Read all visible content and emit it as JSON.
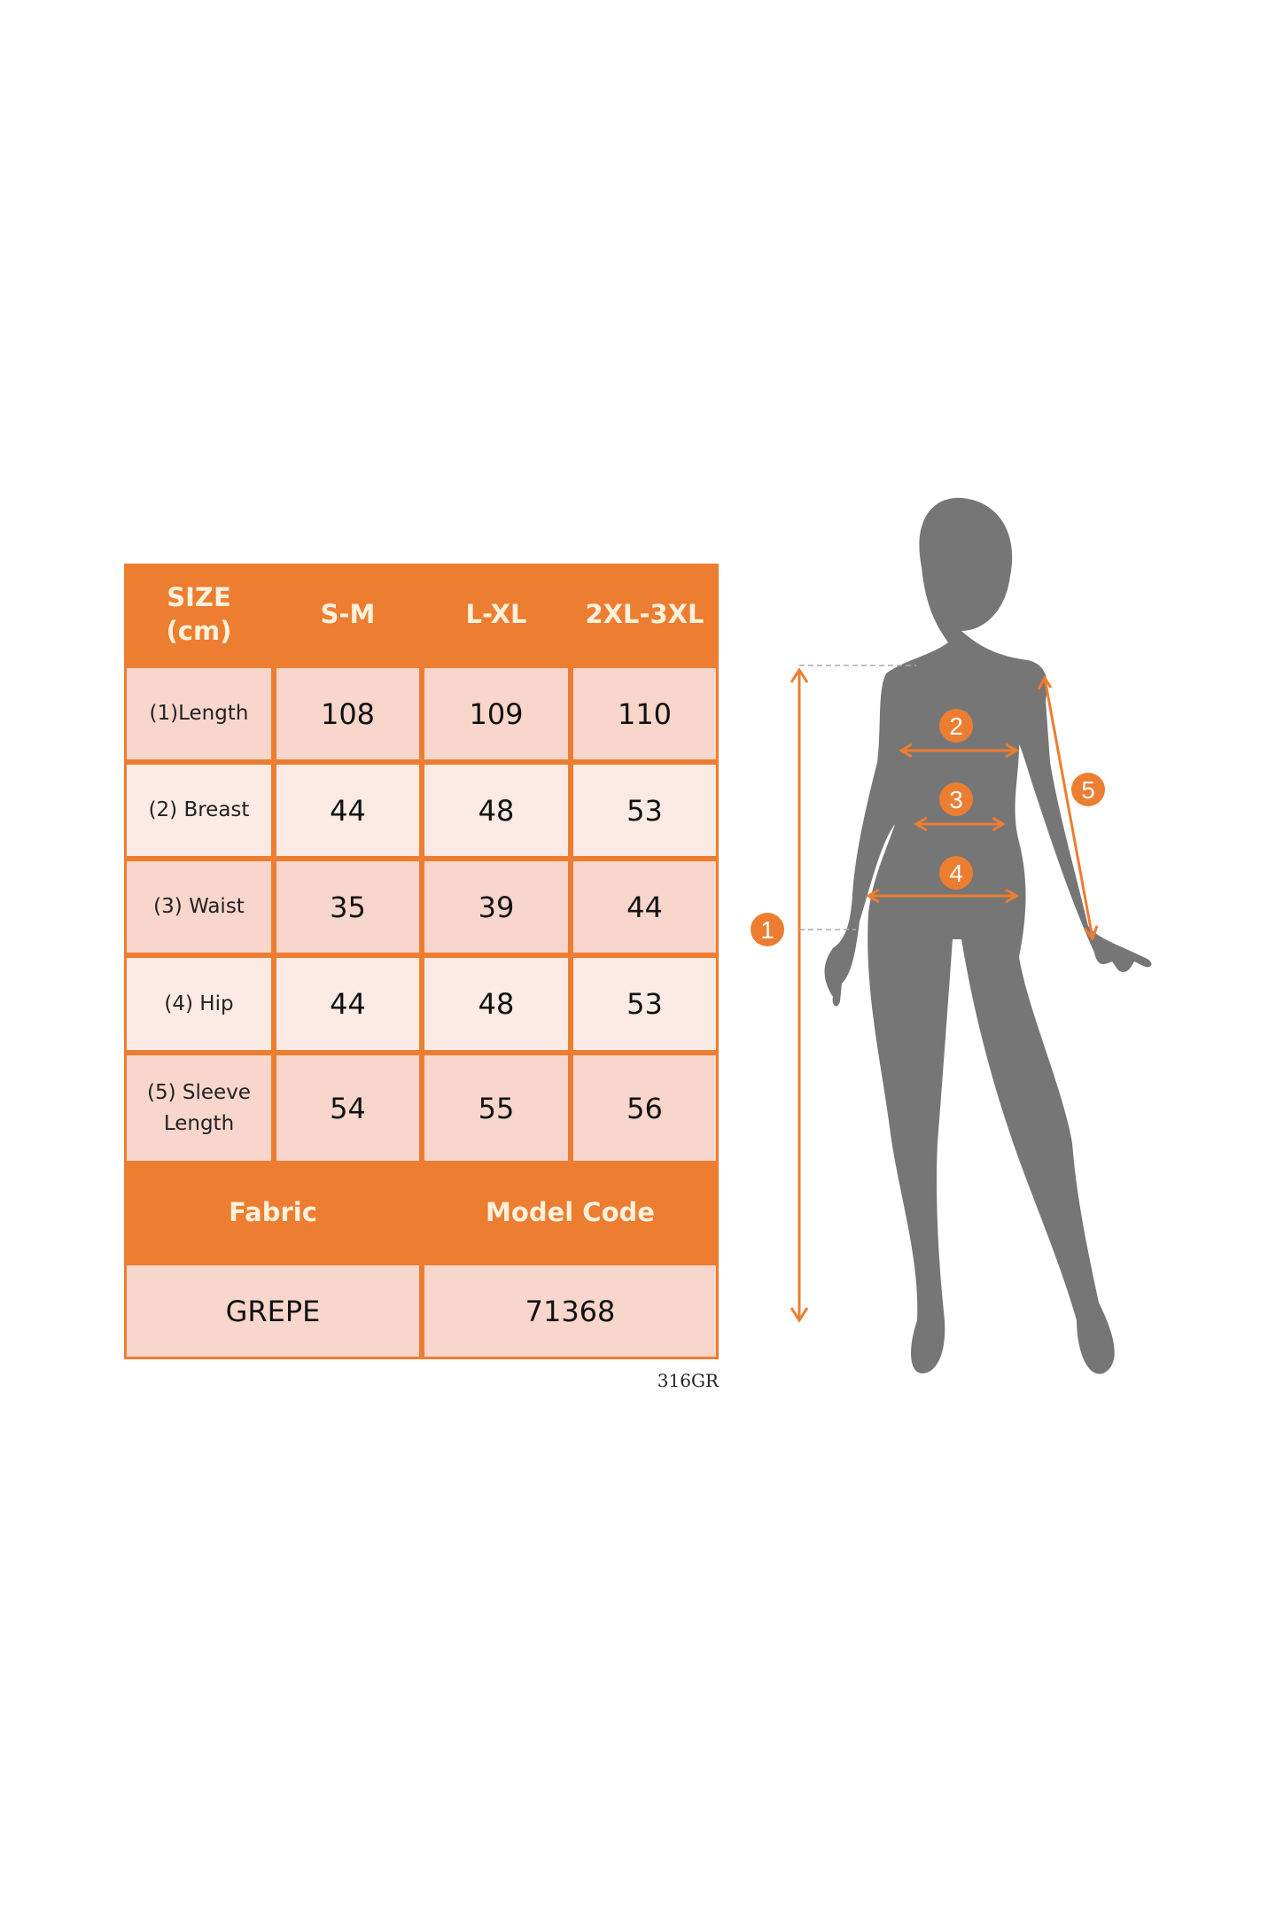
{
  "table": {
    "header": [
      "SIZE\n(cm)",
      "S-M",
      "L-XL",
      "2XL-3XL"
    ],
    "rows": [
      {
        "label": "(1)Length",
        "values": [
          "108",
          "109",
          "110"
        ]
      },
      {
        "label": "(2) Breast",
        "values": [
          "44",
          "48",
          "53"
        ]
      },
      {
        "label": "(3) Waist",
        "values": [
          "35",
          "39",
          "44"
        ]
      },
      {
        "label": "(4) Hip",
        "values": [
          "44",
          "48",
          "53"
        ]
      },
      {
        "label": "(5) Sleeve\nLength",
        "values": [
          "54",
          "55",
          "56"
        ]
      }
    ],
    "footer_header": [
      "Fabric",
      "Model Code"
    ],
    "footer_values": [
      "GREPE",
      "71368"
    ]
  },
  "product_code": "316GR",
  "figure": {
    "markers": [
      "1",
      "2",
      "3",
      "4",
      "5"
    ],
    "accent_color": "#ED7D31",
    "silhouette_color": "#767676"
  }
}
